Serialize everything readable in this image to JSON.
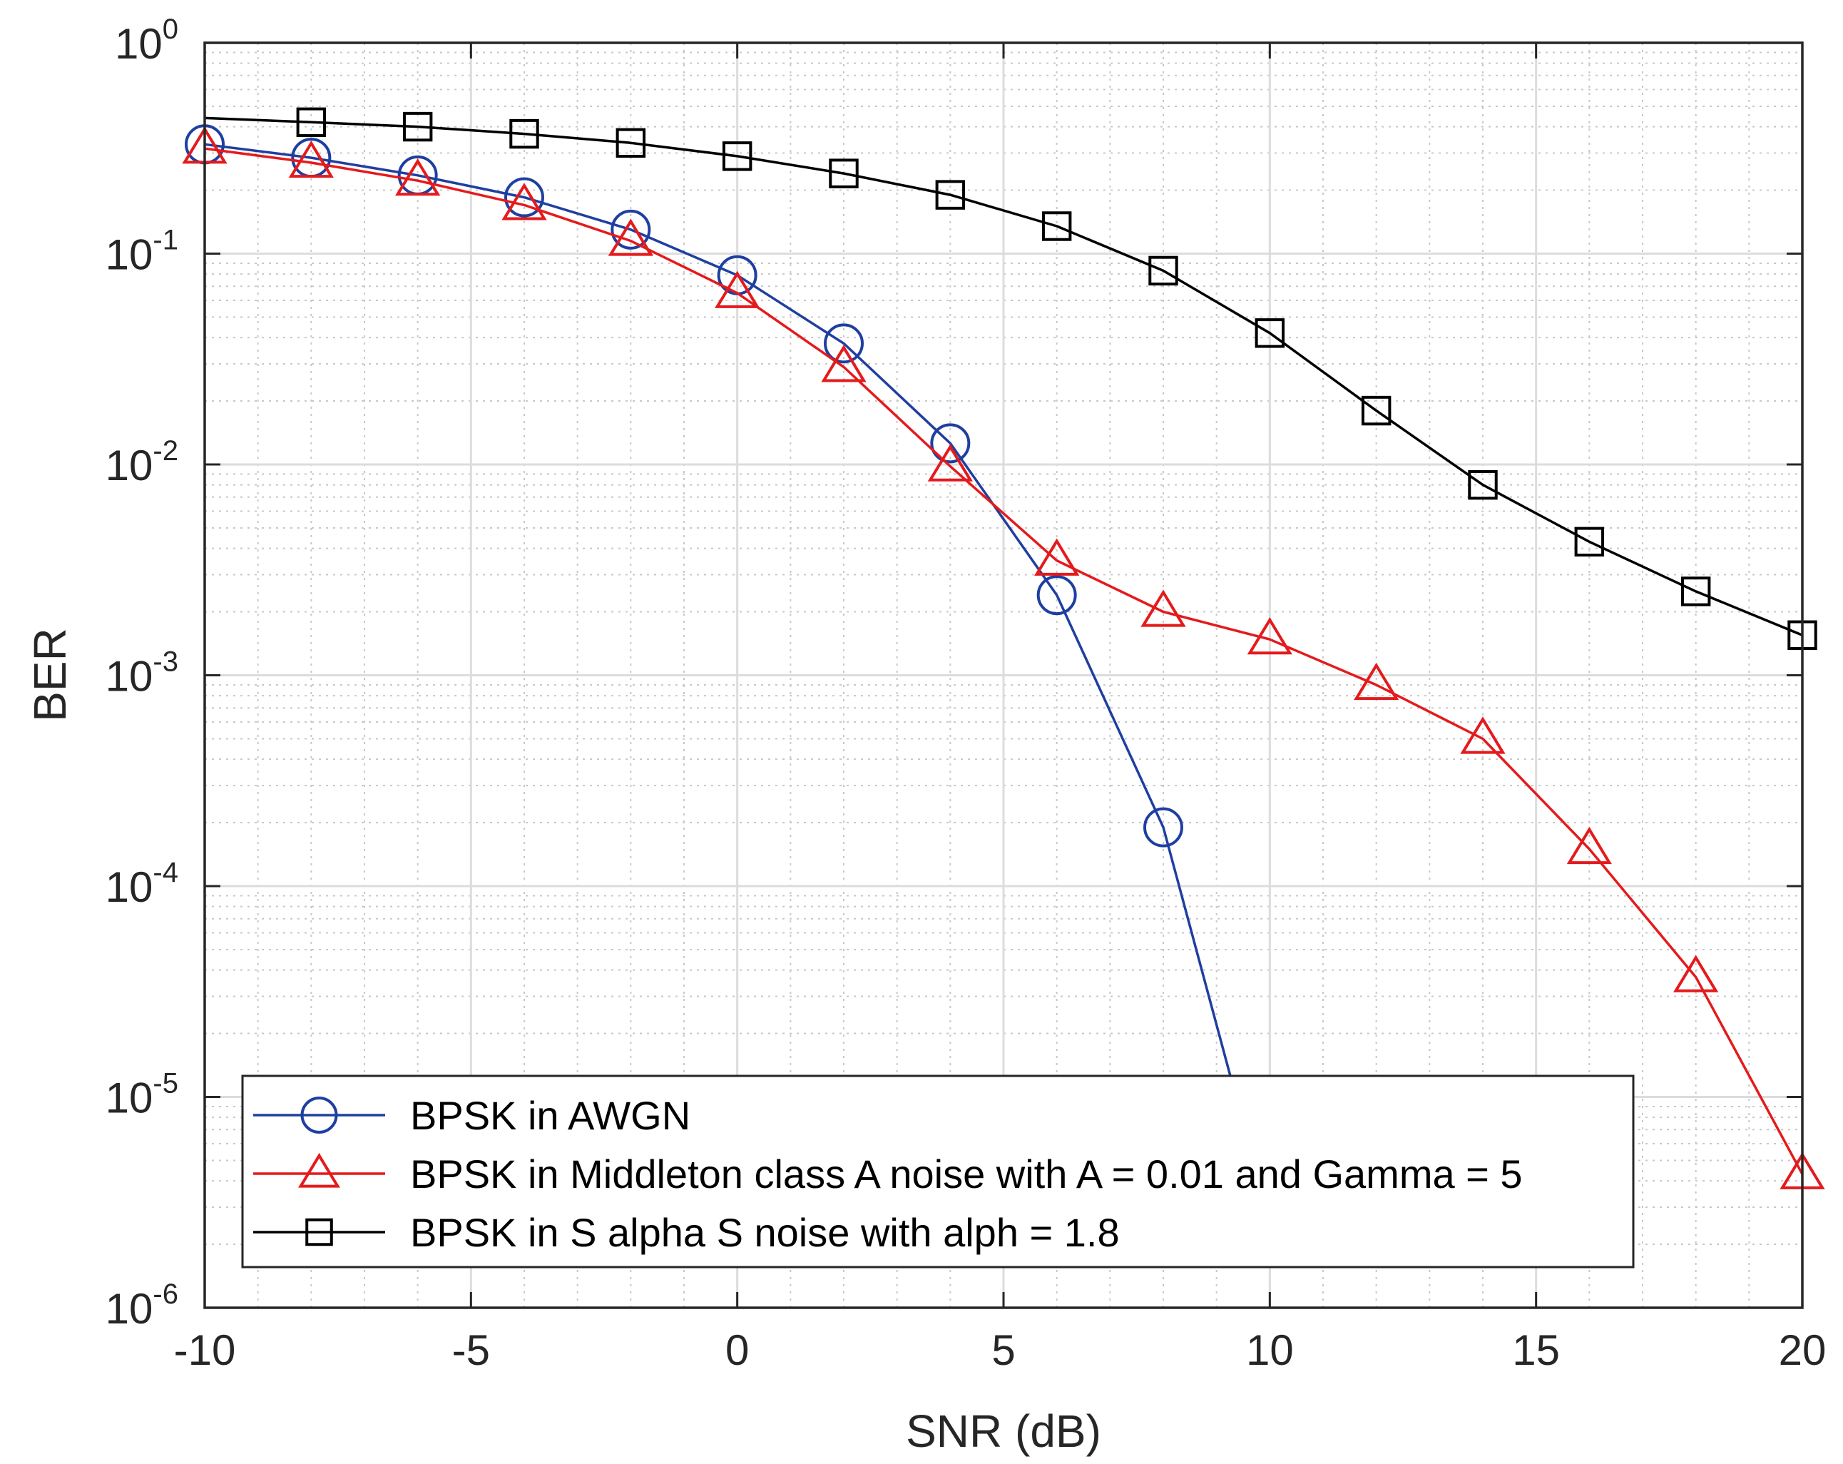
{
  "chart_data": {
    "type": "line",
    "title": "",
    "xlabel": "SNR (dB)",
    "ylabel": "BER",
    "yscale": "log",
    "xlim": [
      -10,
      20
    ],
    "ylim": [
      1e-06,
      1
    ],
    "grid": true,
    "minor_grid": true,
    "legend_position": "bottom-center",
    "x_ticks": [
      {
        "value": -10,
        "label": "-10"
      },
      {
        "value": -5,
        "label": "-5"
      },
      {
        "value": 0,
        "label": "0"
      },
      {
        "value": 5,
        "label": "5"
      },
      {
        "value": 10,
        "label": "10"
      },
      {
        "value": 15,
        "label": "15"
      },
      {
        "value": 20,
        "label": "20"
      }
    ],
    "y_ticks": [
      {
        "value": 1,
        "base": "10",
        "exponent": "0"
      },
      {
        "value": 0.1,
        "base": "10",
        "exponent": "-1"
      },
      {
        "value": 0.01,
        "base": "10",
        "exponent": "-2"
      },
      {
        "value": 0.001,
        "base": "10",
        "exponent": "-3"
      },
      {
        "value": 0.0001,
        "base": "10",
        "exponent": "-4"
      },
      {
        "value": 1e-05,
        "base": "10",
        "exponent": "-5"
      },
      {
        "value": 1e-06,
        "base": "10",
        "exponent": "-6"
      }
    ],
    "series": [
      {
        "name": "BPSK in AWGN",
        "color": "#1f3fa0",
        "marker": "circle",
        "line_points": [
          {
            "x": -10,
            "y": 0.33
          },
          {
            "x": -8,
            "y": 0.285
          },
          {
            "x": -6,
            "y": 0.235
          },
          {
            "x": -4,
            "y": 0.185
          },
          {
            "x": -2,
            "y": 0.13
          },
          {
            "x": 0,
            "y": 0.079
          },
          {
            "x": 2,
            "y": 0.0375
          },
          {
            "x": 4,
            "y": 0.0126
          },
          {
            "x": 6,
            "y": 0.0024
          },
          {
            "x": 8,
            "y": 0.00019
          },
          {
            "x": 9.3,
            "y": 1.15e-05
          }
        ],
        "markers": [
          {
            "x": -10,
            "y": 0.33
          },
          {
            "x": -8,
            "y": 0.285
          },
          {
            "x": -6,
            "y": 0.235
          },
          {
            "x": -4,
            "y": 0.185
          },
          {
            "x": -2,
            "y": 0.13
          },
          {
            "x": 0,
            "y": 0.079
          },
          {
            "x": 2,
            "y": 0.0375
          },
          {
            "x": 4,
            "y": 0.0126
          },
          {
            "x": 6,
            "y": 0.0024
          },
          {
            "x": 8,
            "y": 0.00019
          }
        ]
      },
      {
        "name": "BPSK in Middleton class A noise with A = 0.01 and Gamma = 5",
        "color": "#e41a1c",
        "marker": "triangle",
        "line_points": [
          {
            "x": -10,
            "y": 0.315
          },
          {
            "x": -8,
            "y": 0.27
          },
          {
            "x": -6,
            "y": 0.222
          },
          {
            "x": -4,
            "y": 0.17
          },
          {
            "x": -2,
            "y": 0.115
          },
          {
            "x": 0,
            "y": 0.065
          },
          {
            "x": 2,
            "y": 0.029
          },
          {
            "x": 4,
            "y": 0.0098
          },
          {
            "x": 6,
            "y": 0.0035
          },
          {
            "x": 8,
            "y": 0.002
          },
          {
            "x": 10,
            "y": 0.00148
          },
          {
            "x": 12,
            "y": 0.0009
          },
          {
            "x": 14,
            "y": 0.0005
          },
          {
            "x": 16,
            "y": 0.00015
          },
          {
            "x": 18,
            "y": 3.7e-05
          },
          {
            "x": 20,
            "y": 4.3e-06
          }
        ],
        "markers": [
          {
            "x": -10,
            "y": 0.315
          },
          {
            "x": -8,
            "y": 0.27
          },
          {
            "x": -6,
            "y": 0.222
          },
          {
            "x": -4,
            "y": 0.17
          },
          {
            "x": -2,
            "y": 0.115
          },
          {
            "x": 0,
            "y": 0.065
          },
          {
            "x": 2,
            "y": 0.029
          },
          {
            "x": 4,
            "y": 0.0098
          },
          {
            "x": 6,
            "y": 0.0035
          },
          {
            "x": 8,
            "y": 0.002
          },
          {
            "x": 10,
            "y": 0.00148
          },
          {
            "x": 12,
            "y": 0.0009
          },
          {
            "x": 14,
            "y": 0.0005
          },
          {
            "x": 16,
            "y": 0.00015
          },
          {
            "x": 18,
            "y": 3.7e-05
          },
          {
            "x": 20,
            "y": 4.3e-06
          }
        ]
      },
      {
        "name": "BPSK in S alpha S noise with alph = 1.8",
        "color": "#000000",
        "marker": "square",
        "line_points": [
          {
            "x": -10,
            "y": 0.44
          },
          {
            "x": -8,
            "y": 0.42
          },
          {
            "x": -6,
            "y": 0.4
          },
          {
            "x": -4,
            "y": 0.37
          },
          {
            "x": -2,
            "y": 0.335
          },
          {
            "x": 0,
            "y": 0.29
          },
          {
            "x": 2,
            "y": 0.24
          },
          {
            "x": 4,
            "y": 0.19
          },
          {
            "x": 6,
            "y": 0.135
          },
          {
            "x": 8,
            "y": 0.083
          },
          {
            "x": 10,
            "y": 0.042
          },
          {
            "x": 12,
            "y": 0.018
          },
          {
            "x": 14,
            "y": 0.008
          },
          {
            "x": 16,
            "y": 0.0043
          },
          {
            "x": 18,
            "y": 0.0025
          },
          {
            "x": 20,
            "y": 0.00155
          }
        ],
        "markers": [
          {
            "x": -8,
            "y": 0.42
          },
          {
            "x": -6,
            "y": 0.4
          },
          {
            "x": -4,
            "y": 0.37
          },
          {
            "x": -2,
            "y": 0.335
          },
          {
            "x": 0,
            "y": 0.29
          },
          {
            "x": 2,
            "y": 0.24
          },
          {
            "x": 4,
            "y": 0.19
          },
          {
            "x": 6,
            "y": 0.135
          },
          {
            "x": 8,
            "y": 0.083
          },
          {
            "x": 10,
            "y": 0.042
          },
          {
            "x": 12,
            "y": 0.018
          },
          {
            "x": 14,
            "y": 0.008
          },
          {
            "x": 16,
            "y": 0.0043
          },
          {
            "x": 18,
            "y": 0.0025
          },
          {
            "x": 20,
            "y": 0.00155
          }
        ]
      }
    ]
  }
}
